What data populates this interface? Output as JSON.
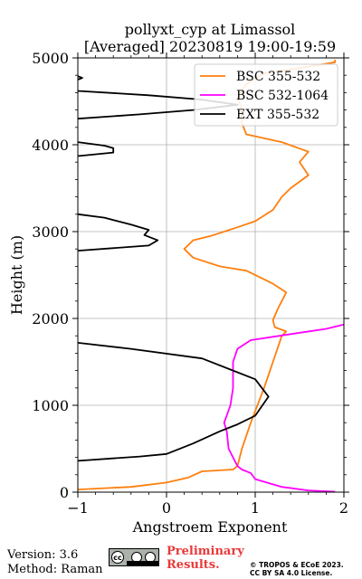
{
  "chart_data": {
    "type": "line",
    "title": "pollyxt_cyp at Limassol",
    "subtitle": "[Averaged] 20230819 19:00-19:59",
    "xlabel": "Angstroem Exponent",
    "ylabel": "Height (m)",
    "xlim": [
      -1,
      2
    ],
    "ylim": [
      0,
      5000
    ],
    "xticks": [
      "−1",
      "0",
      "1",
      "2"
    ],
    "yticks": [
      "0",
      "1000",
      "2000",
      "3000",
      "4000",
      "5000"
    ],
    "grid": true,
    "legend_position": "top-right",
    "series": [
      {
        "name": "BSC 355-532",
        "color": "#ff7f0e",
        "points": [
          [
            -1.0,
            30
          ],
          [
            -0.4,
            60
          ],
          [
            0.0,
            110
          ],
          [
            0.25,
            170
          ],
          [
            0.4,
            240
          ],
          [
            0.75,
            260
          ],
          [
            0.8,
            300
          ],
          [
            0.85,
            500
          ],
          [
            0.95,
            800
          ],
          [
            1.1,
            1200
          ],
          [
            1.2,
            1500
          ],
          [
            1.3,
            1800
          ],
          [
            1.35,
            1850
          ],
          [
            1.22,
            1900
          ],
          [
            1.2,
            1980
          ],
          [
            1.25,
            2100
          ],
          [
            1.35,
            2300
          ],
          [
            1.2,
            2400
          ],
          [
            0.9,
            2550
          ],
          [
            0.6,
            2600
          ],
          [
            0.3,
            2700
          ],
          [
            0.2,
            2800
          ],
          [
            0.3,
            2900
          ],
          [
            0.5,
            2950
          ],
          [
            0.8,
            3050
          ],
          [
            1.0,
            3120
          ],
          [
            1.2,
            3250
          ],
          [
            1.3,
            3400
          ],
          [
            1.4,
            3500
          ],
          [
            1.6,
            3650
          ],
          [
            1.5,
            3800
          ],
          [
            1.6,
            3920
          ],
          [
            1.3,
            4030
          ],
          [
            0.9,
            4120
          ],
          [
            0.85,
            4250
          ],
          [
            0.85,
            4400
          ],
          [
            0.8,
            4550
          ],
          [
            0.9,
            4700
          ],
          [
            1.1,
            4820
          ],
          [
            1.6,
            4900
          ],
          [
            1.9,
            4950
          ],
          [
            1.9,
            4980
          ]
        ]
      },
      {
        "name": "BSC 532-1064",
        "color": "#ff00ff",
        "points": [
          [
            1.9,
            5
          ],
          [
            1.6,
            20
          ],
          [
            1.3,
            60
          ],
          [
            1.0,
            150
          ],
          [
            0.95,
            220
          ],
          [
            0.85,
            260
          ],
          [
            0.8,
            300
          ],
          [
            0.7,
            500
          ],
          [
            0.68,
            700
          ],
          [
            0.65,
            800
          ],
          [
            0.72,
            1000
          ],
          [
            0.75,
            1200
          ],
          [
            0.75,
            1500
          ],
          [
            0.8,
            1650
          ],
          [
            0.95,
            1750
          ],
          [
            1.4,
            1820
          ],
          [
            1.8,
            1880
          ],
          [
            2.0,
            1930
          ]
        ]
      },
      {
        "name": "EXT 355-532",
        "color": "#000000",
        "points": [
          [
            -1.0,
            360
          ],
          [
            -0.3,
            410
          ],
          [
            0.0,
            440
          ],
          [
            0.3,
            560
          ],
          [
            0.6,
            700
          ],
          [
            0.8,
            780
          ],
          [
            1.0,
            880
          ],
          [
            1.15,
            1100
          ],
          [
            1.0,
            1300
          ],
          [
            0.4,
            1540
          ],
          [
            -0.4,
            1650
          ],
          [
            -1.0,
            1720
          ]
        ]
      },
      {
        "name": "EXT 355-532 segment 2",
        "color": "#000000",
        "points": [
          [
            -1.0,
            2780
          ],
          [
            -0.2,
            2840
          ],
          [
            -0.1,
            2900
          ],
          [
            -0.25,
            2960
          ],
          [
            -0.2,
            3020
          ],
          [
            -0.4,
            3080
          ],
          [
            -0.7,
            3160
          ],
          [
            -1.0,
            3200
          ]
        ]
      },
      {
        "name": "EXT 355-532 segment 3",
        "color": "#000000",
        "points": [
          [
            -1.0,
            3870
          ],
          [
            -0.6,
            3910
          ],
          [
            -0.6,
            3960
          ],
          [
            -0.7,
            3990
          ],
          [
            -1.0,
            4030
          ]
        ]
      },
      {
        "name": "EXT 355-532 segment 4",
        "color": "#000000",
        "points": [
          [
            -1.0,
            4300
          ],
          [
            -0.3,
            4350
          ],
          [
            0.3,
            4400
          ],
          [
            0.8,
            4460
          ],
          [
            0.4,
            4520
          ],
          [
            -0.2,
            4570
          ],
          [
            -1.0,
            4620
          ]
        ]
      },
      {
        "name": "EXT 355-532 segment 5",
        "color": "#000000",
        "points": [
          [
            -1.0,
            4750
          ],
          [
            -0.95,
            4770
          ],
          [
            -1.0,
            4790
          ]
        ]
      }
    ],
    "legend": [
      {
        "label": "BSC 355-532",
        "color": "#ff7f0e"
      },
      {
        "label": "BSC 532-1064",
        "color": "#ff00ff"
      },
      {
        "label": "EXT 355-532",
        "color": "#000000"
      }
    ]
  },
  "footer": {
    "version": "Version: 3.6",
    "method": "Method: Raman",
    "preliminary_line1": "Preliminary",
    "preliminary_line2": "Results.",
    "license_line1": "© TROPOS & ECoE 2023.",
    "license_line2": "CC BY SA 4.0 License.",
    "badge_text": "cc"
  }
}
